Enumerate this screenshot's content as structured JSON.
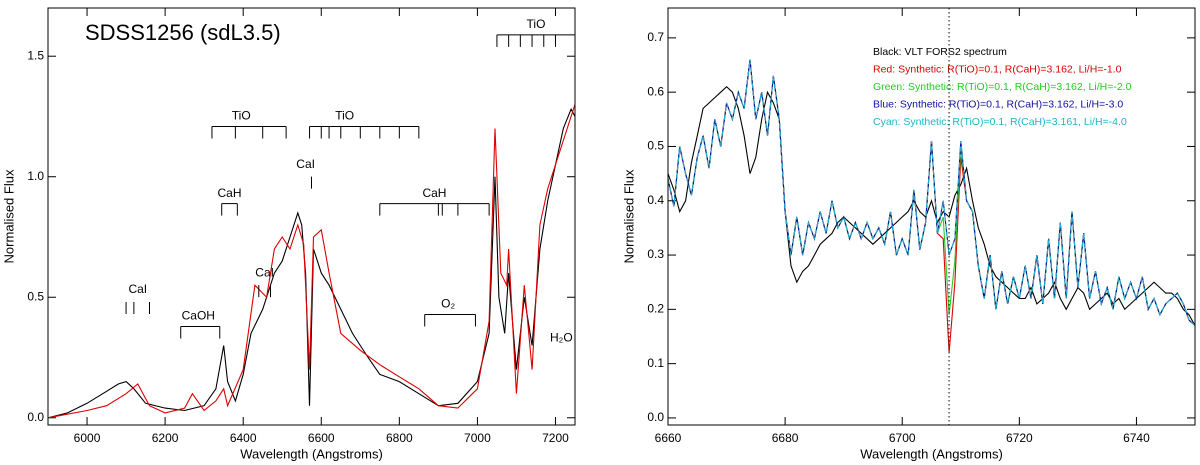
{
  "chart_data": [
    {
      "type": "line",
      "title": "SDSS1256 (sdL3.5)",
      "x_label": "Wavelength (Angstroms)",
      "y_label": "Normalised Flux",
      "xlim": [
        5900,
        7250
      ],
      "ylim": [
        -0.03,
        1.7
      ],
      "xticks": [
        6000,
        6200,
        6400,
        6600,
        6800,
        7000,
        7200
      ],
      "yticks": [
        {
          "value": 0,
          "label": "0.0"
        },
        0.5,
        {
          "value": 1,
          "label": "1.0"
        },
        1.5
      ],
      "series": [
        {
          "color": "#000000",
          "x": [
            5900,
            5950,
            6000,
            6050,
            6080,
            6100,
            6120,
            6150,
            6200,
            6250,
            6300,
            6330,
            6350,
            6360,
            6380,
            6400,
            6420,
            6450,
            6480,
            6500,
            6520,
            6540,
            6550,
            6560,
            6570,
            6580,
            6600,
            6620,
            6650,
            6680,
            6700,
            6720,
            6750,
            6800,
            6850,
            6900,
            6950,
            7000,
            7030,
            7045,
            7055,
            7070,
            7080,
            7100,
            7120,
            7140,
            7160,
            7180,
            7200,
            7220,
            7240,
            7250
          ],
          "values": [
            0.0,
            0.02,
            0.06,
            0.11,
            0.14,
            0.15,
            0.12,
            0.06,
            0.04,
            0.03,
            0.05,
            0.12,
            0.3,
            0.15,
            0.07,
            0.18,
            0.35,
            0.45,
            0.6,
            0.65,
            0.75,
            0.85,
            0.8,
            0.6,
            0.05,
            0.7,
            0.6,
            0.55,
            0.45,
            0.35,
            0.3,
            0.25,
            0.18,
            0.15,
            0.1,
            0.05,
            0.06,
            0.15,
            0.35,
            1.0,
            0.5,
            0.35,
            0.6,
            0.2,
            0.5,
            0.3,
            0.7,
            0.9,
            1.05,
            1.2,
            1.28,
            1.25
          ]
        },
        {
          "color": "#dd0000",
          "x": [
            5900,
            6000,
            6050,
            6100,
            6130,
            6160,
            6200,
            6250,
            6270,
            6300,
            6330,
            6350,
            6360,
            6400,
            6430,
            6460,
            6480,
            6500,
            6520,
            6540,
            6555,
            6570,
            6580,
            6600,
            6620,
            6650,
            6700,
            6750,
            6800,
            6850,
            6900,
            6950,
            7000,
            7030,
            7045,
            7060,
            7075,
            7080,
            7100,
            7120,
            7140,
            7160,
            7180,
            7200,
            7230,
            7250
          ],
          "values": [
            0.0,
            0.03,
            0.05,
            0.1,
            0.14,
            0.05,
            0.02,
            0.04,
            0.1,
            0.03,
            0.07,
            0.12,
            0.05,
            0.2,
            0.55,
            0.5,
            0.7,
            0.75,
            0.7,
            0.8,
            0.72,
            0.2,
            0.75,
            0.78,
            0.6,
            0.35,
            0.28,
            0.22,
            0.17,
            0.12,
            0.05,
            0.04,
            0.12,
            0.4,
            1.2,
            0.6,
            0.55,
            0.7,
            0.1,
            0.55,
            0.2,
            0.8,
            0.95,
            1.05,
            1.2,
            1.3
          ]
        }
      ],
      "annotations": [
        {
          "text": "CaI",
          "x": 6130,
          "y": 0.53,
          "ticks": [
            6100,
            6120,
            6160
          ]
        },
        {
          "text": "CaOH",
          "x": 6285,
          "y": 0.42,
          "span": [
            6240,
            6340
          ],
          "ticks": [
            6240,
            6340
          ]
        },
        {
          "text": "CaI",
          "x": 6455,
          "y": 0.6,
          "ticks": [
            6440,
            6470
          ]
        },
        {
          "text": "CaH",
          "x": 6365,
          "y": 0.93,
          "span": [
            6345,
            6385
          ],
          "ticks": [
            6345,
            6385
          ]
        },
        {
          "text": "TiO",
          "x": 6395,
          "y": 1.25,
          "span": [
            6320,
            6510
          ],
          "ticks": [
            6320,
            6380,
            6450,
            6510
          ]
        },
        {
          "text": "CaI",
          "x": 6560,
          "y": 1.05,
          "ticks": [
            6575
          ]
        },
        {
          "text": "TiO",
          "x": 6660,
          "y": 1.25,
          "span": [
            6570,
            6850
          ],
          "ticks": [
            6570,
            6600,
            6620,
            6650,
            6700,
            6750,
            6800,
            6850
          ]
        },
        {
          "text": "CaH",
          "x": 6890,
          "y": 0.93,
          "span": [
            6750,
            7030
          ],
          "ticks": [
            6750,
            6900,
            6910,
            6950,
            7030
          ]
        },
        {
          "text": "O₂",
          "x": 6925,
          "y": 0.47,
          "span": [
            6865,
            6995
          ],
          "ticks": [
            6865,
            6995
          ]
        },
        {
          "text": "TiO",
          "x": 7150,
          "y": 1.63,
          "span": [
            7050,
            7250
          ],
          "ticks": [
            7050,
            7080,
            7110,
            7140,
            7170,
            7200,
            7250
          ]
        },
        {
          "text": "H₂O",
          "x": 7215,
          "y": 0.33
        }
      ]
    },
    {
      "type": "line",
      "x_label": "Wavelength (Angstroms)",
      "y_label": "Normalised Flux",
      "xlim": [
        6660,
        6750
      ],
      "ylim": [
        -0.013,
        0.755
      ],
      "xticks": [
        6660,
        6680,
        6700,
        6720,
        6740
      ],
      "yticks": [
        {
          "value": 0,
          "label": "0.0"
        },
        0.1,
        0.2,
        0.3,
        0.4,
        0.5,
        0.6,
        0.7
      ],
      "marker_line": 6708,
      "x": [
        6660,
        6661,
        6662,
        6663,
        6664,
        6665,
        6666,
        6667,
        6668,
        6669,
        6670,
        6671,
        6672,
        6673,
        6674,
        6675,
        6676,
        6677,
        6678,
        6679,
        6680,
        6681,
        6682,
        6683,
        6684,
        6685,
        6686,
        6687,
        6688,
        6689,
        6690,
        6691,
        6692,
        6693,
        6694,
        6695,
        6696,
        6697,
        6698,
        6699,
        6700,
        6701,
        6702,
        6703,
        6704,
        6705,
        6706,
        6707,
        6708,
        6709,
        6710,
        6711,
        6712,
        6713,
        6714,
        6715,
        6716,
        6717,
        6718,
        6719,
        6720,
        6721,
        6722,
        6723,
        6724,
        6725,
        6726,
        6727,
        6728,
        6729,
        6730,
        6731,
        6732,
        6733,
        6734,
        6735,
        6736,
        6737,
        6738,
        6739,
        6740,
        6741,
        6742,
        6743,
        6744,
        6745,
        6746,
        6747,
        6748,
        6749,
        6750
      ],
      "series": [
        {
          "name": "Black: VLT FORS2 spectrum",
          "color": "#000000",
          "values": [
            0.45,
            0.42,
            0.38,
            0.4,
            0.47,
            0.52,
            0.57,
            0.58,
            0.59,
            0.6,
            0.61,
            0.6,
            0.57,
            0.52,
            0.45,
            0.48,
            0.55,
            0.6,
            0.58,
            0.55,
            0.38,
            0.28,
            0.25,
            0.27,
            0.28,
            0.3,
            0.32,
            0.33,
            0.34,
            0.36,
            0.37,
            0.36,
            0.35,
            0.34,
            0.33,
            0.32,
            0.33,
            0.34,
            0.35,
            0.36,
            0.37,
            0.38,
            0.4,
            0.38,
            0.37,
            0.4,
            0.36,
            0.38,
            0.37,
            0.41,
            0.43,
            0.46,
            0.4,
            0.35,
            0.32,
            0.28,
            0.26,
            0.25,
            0.24,
            0.23,
            0.22,
            0.22,
            0.24,
            0.21,
            0.22,
            0.23,
            0.25,
            0.22,
            0.2,
            0.22,
            0.24,
            0.23,
            0.2,
            0.21,
            0.22,
            0.23,
            0.21,
            0.22,
            0.2,
            0.21,
            0.22,
            0.23,
            0.24,
            0.25,
            0.24,
            0.23,
            0.23,
            0.22,
            0.2,
            0.19,
            0.17
          ]
        },
        {
          "name": "Red: Synthetic: R(TiO)=0.1, R(CaH)=3.162, Li/H=-1.0",
          "color": "#dd0000",
          "values": [
            0.44,
            0.39,
            0.5,
            0.45,
            0.41,
            0.48,
            0.52,
            0.46,
            0.55,
            0.5,
            0.58,
            0.55,
            0.6,
            0.57,
            0.66,
            0.55,
            0.6,
            0.52,
            0.63,
            0.55,
            0.38,
            0.3,
            0.37,
            0.3,
            0.36,
            0.33,
            0.38,
            0.34,
            0.4,
            0.35,
            0.37,
            0.33,
            0.36,
            0.33,
            0.36,
            0.33,
            0.35,
            0.32,
            0.38,
            0.3,
            0.33,
            0.3,
            0.42,
            0.31,
            0.36,
            0.51,
            0.34,
            0.33,
            0.12,
            0.25,
            0.48,
            0.4,
            0.38,
            0.28,
            0.22,
            0.3,
            0.2,
            0.27,
            0.21,
            0.26,
            0.22,
            0.28,
            0.22,
            0.3,
            0.21,
            0.33,
            0.22,
            0.36,
            0.22,
            0.38,
            0.24,
            0.34,
            0.22,
            0.27,
            0.21,
            0.24,
            0.2,
            0.26,
            0.22,
            0.25,
            0.22,
            0.26,
            0.2,
            0.22,
            0.19,
            0.21,
            0.22,
            0.23,
            0.21,
            0.18,
            0.17
          ]
        },
        {
          "name": "Green: Synthetic: R(TiO)=0.1, R(CaH)=3.162, Li/H=-2.0",
          "color": "#22cc22",
          "values": [
            0.44,
            0.39,
            0.5,
            0.45,
            0.41,
            0.48,
            0.52,
            0.46,
            0.55,
            0.5,
            0.58,
            0.55,
            0.6,
            0.57,
            0.66,
            0.55,
            0.6,
            0.52,
            0.63,
            0.55,
            0.38,
            0.3,
            0.37,
            0.3,
            0.36,
            0.33,
            0.38,
            0.34,
            0.4,
            0.35,
            0.37,
            0.33,
            0.36,
            0.33,
            0.36,
            0.33,
            0.35,
            0.32,
            0.38,
            0.3,
            0.33,
            0.3,
            0.42,
            0.31,
            0.36,
            0.51,
            0.34,
            0.37,
            0.19,
            0.29,
            0.5,
            0.4,
            0.38,
            0.28,
            0.22,
            0.3,
            0.2,
            0.27,
            0.21,
            0.26,
            0.22,
            0.28,
            0.22,
            0.3,
            0.21,
            0.33,
            0.22,
            0.36,
            0.22,
            0.38,
            0.24,
            0.34,
            0.22,
            0.27,
            0.21,
            0.24,
            0.2,
            0.26,
            0.22,
            0.25,
            0.22,
            0.26,
            0.2,
            0.22,
            0.19,
            0.21,
            0.22,
            0.23,
            0.21,
            0.18,
            0.17
          ]
        },
        {
          "name": "Blue: Synthetic: R(TiO)=0.1, R(CaH)=3.162, Li/H=-3.0",
          "color": "#1010a0",
          "values": [
            0.44,
            0.39,
            0.5,
            0.45,
            0.41,
            0.48,
            0.52,
            0.46,
            0.55,
            0.5,
            0.58,
            0.55,
            0.6,
            0.57,
            0.66,
            0.55,
            0.6,
            0.52,
            0.63,
            0.55,
            0.38,
            0.3,
            0.37,
            0.3,
            0.36,
            0.33,
            0.38,
            0.34,
            0.4,
            0.35,
            0.37,
            0.33,
            0.36,
            0.33,
            0.36,
            0.33,
            0.35,
            0.32,
            0.38,
            0.3,
            0.33,
            0.3,
            0.42,
            0.31,
            0.36,
            0.51,
            0.34,
            0.4,
            0.3,
            0.33,
            0.51,
            0.4,
            0.38,
            0.28,
            0.22,
            0.3,
            0.2,
            0.27,
            0.21,
            0.26,
            0.22,
            0.28,
            0.22,
            0.3,
            0.21,
            0.33,
            0.22,
            0.36,
            0.22,
            0.38,
            0.24,
            0.34,
            0.22,
            0.27,
            0.21,
            0.24,
            0.2,
            0.26,
            0.22,
            0.25,
            0.22,
            0.26,
            0.2,
            0.22,
            0.19,
            0.21,
            0.22,
            0.23,
            0.21,
            0.18,
            0.17
          ]
        },
        {
          "name": "Cyan: Synthetic: R(TiO)=0.1, R(CaH)=3.161, Li/H=-4.0",
          "color": "#22b4c8",
          "dashed": true,
          "values": [
            0.44,
            0.39,
            0.5,
            0.45,
            0.41,
            0.48,
            0.52,
            0.46,
            0.55,
            0.5,
            0.58,
            0.55,
            0.6,
            0.57,
            0.66,
            0.55,
            0.6,
            0.52,
            0.63,
            0.55,
            0.38,
            0.3,
            0.37,
            0.3,
            0.36,
            0.33,
            0.38,
            0.34,
            0.4,
            0.35,
            0.37,
            0.33,
            0.36,
            0.33,
            0.36,
            0.33,
            0.35,
            0.32,
            0.38,
            0.3,
            0.33,
            0.3,
            0.42,
            0.31,
            0.36,
            0.51,
            0.34,
            0.4,
            0.3,
            0.33,
            0.51,
            0.4,
            0.38,
            0.28,
            0.22,
            0.3,
            0.2,
            0.27,
            0.21,
            0.26,
            0.22,
            0.28,
            0.22,
            0.3,
            0.21,
            0.33,
            0.22,
            0.36,
            0.22,
            0.38,
            0.24,
            0.34,
            0.22,
            0.27,
            0.21,
            0.24,
            0.2,
            0.26,
            0.22,
            0.25,
            0.22,
            0.26,
            0.2,
            0.22,
            0.19,
            0.21,
            0.22,
            0.23,
            0.21,
            0.18,
            0.17
          ]
        }
      ]
    }
  ]
}
